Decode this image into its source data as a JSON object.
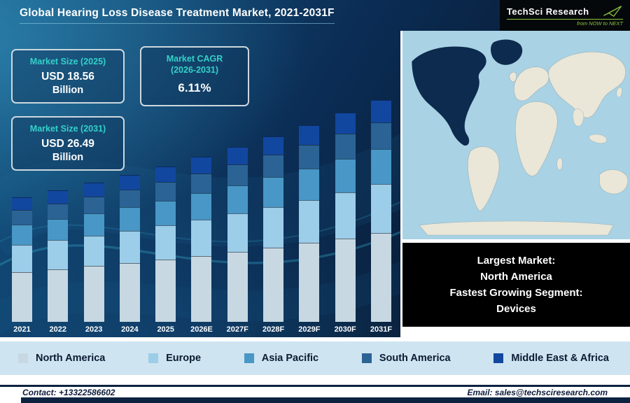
{
  "header": {
    "title": "Global Hearing Loss Disease Treatment Market, 2021-2031F",
    "logo": {
      "text": "TechSci Research",
      "tagline": "from NOW to NEXT",
      "accent_color": "#8dc63f"
    }
  },
  "info_boxes": {
    "market_size_2025": {
      "label": "Market Size (2025)",
      "value": "USD 18.56",
      "unit": "Billion"
    },
    "market_cagr": {
      "label_line1": "Market CAGR",
      "label_line2": "(2026-2031)",
      "value": "6.11%"
    },
    "market_size_2031": {
      "label": "Market Size (2031)",
      "value": "USD 26.49",
      "unit": "Billion"
    }
  },
  "note": {
    "lines": [
      "Largest Market:",
      "North America",
      "Fastest Growing Segment:",
      "Devices"
    ]
  },
  "legend": {
    "items": [
      {
        "label": "North America",
        "color": "#c7d8e2"
      },
      {
        "label": "Europe",
        "color": "#9ccde9"
      },
      {
        "label": "Asia Pacific",
        "color": "#4897c6"
      },
      {
        "label": "South America",
        "color": "#2b6395"
      },
      {
        "label": "Middle East & Africa",
        "color": "#1247a0"
      }
    ]
  },
  "footer": {
    "contact": "Contact: +13322586602",
    "email": "Email: sales@techsciresearch.com"
  },
  "map": {
    "highlight_region": "North America",
    "highlight_color": "#0d2b4e",
    "land_color": "#eae7d8",
    "ocean_color": "#a9d2e4"
  },
  "chart_data": {
    "type": "bar",
    "stacked": true,
    "title": "Global Hearing Loss Disease Treatment Market, 2021-2031F",
    "unit": "USD Billion",
    "categories": [
      "2021",
      "2022",
      "2023",
      "2024",
      "2025",
      "2026E",
      "2027F",
      "2028F",
      "2029F",
      "2030F",
      "2031F"
    ],
    "series": [
      {
        "name": "North America",
        "color": "#c7d8e2",
        "values": [
          5.94,
          6.29,
          6.65,
          7.02,
          7.42,
          7.88,
          8.36,
          8.87,
          9.41,
          9.98,
          10.6
        ]
      },
      {
        "name": "Europe",
        "color": "#9ccde9",
        "values": [
          3.27,
          3.46,
          3.66,
          3.86,
          4.08,
          4.33,
          4.6,
          4.88,
          5.17,
          5.49,
          5.83
        ]
      },
      {
        "name": "Asia Pacific",
        "color": "#4897c6",
        "values": [
          2.38,
          2.52,
          2.66,
          2.81,
          2.97,
          3.15,
          3.34,
          3.55,
          3.76,
          3.99,
          4.24
        ]
      },
      {
        "name": "South America",
        "color": "#2b6395",
        "values": [
          1.78,
          1.89,
          2.0,
          2.11,
          2.23,
          2.36,
          2.51,
          2.66,
          2.82,
          3.0,
          3.18
        ]
      },
      {
        "name": "Middle East & Africa",
        "color": "#1247a0",
        "values": [
          1.49,
          1.57,
          1.66,
          1.76,
          1.86,
          1.97,
          2.09,
          2.22,
          2.35,
          2.5,
          2.65
        ]
      }
    ],
    "totals": [
      14.86,
      15.73,
      16.63,
      17.56,
      18.56,
      19.69,
      20.9,
      22.18,
      23.51,
      24.96,
      26.5
    ],
    "ylim": [
      0,
      28
    ],
    "grid": false,
    "legend_position": "bottom",
    "annotations": {
      "market_size_2025": "USD 18.56 Billion",
      "market_size_2031": "USD 26.49 Billion",
      "cagr_2026_2031": "6.11%"
    }
  }
}
